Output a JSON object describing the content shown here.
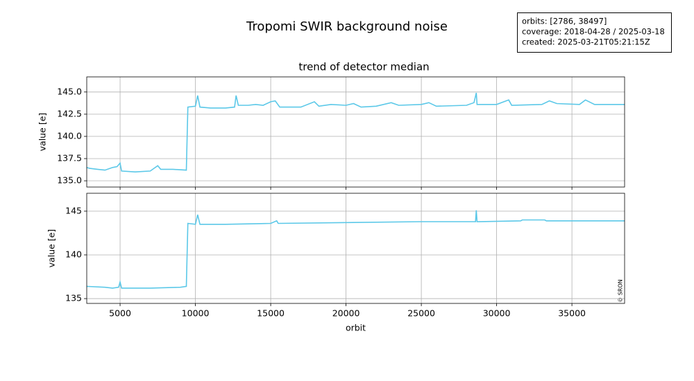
{
  "figure": {
    "title": "Tropomi SWIR background noise",
    "info": [
      "orbits: [2786, 38497]",
      "coverage: 2018-04-28 / 2025-03-18",
      "created: 2025-03-21T05:21:15Z"
    ],
    "credit": "© SRON"
  },
  "chart_data": [
    {
      "type": "line",
      "title": "trend of detector median",
      "ylabel": "value [e]",
      "color": "#5bc8e8",
      "grid": true,
      "xlim": [
        2786,
        38497
      ],
      "xticks": [
        5000,
        10000,
        15000,
        20000,
        25000,
        30000,
        35000
      ],
      "ylim": [
        134.3,
        146.7
      ],
      "yticks": [
        {
          "value": 135,
          "label": "135.0"
        },
        137.5,
        {
          "value": 140,
          "label": "140.0"
        },
        142.5,
        {
          "value": 145,
          "label": "145.0"
        }
      ],
      "x": [
        2786,
        3000,
        3500,
        4000,
        4500,
        4800,
        5000,
        5100,
        6000,
        7000,
        7500,
        7700,
        8500,
        9400,
        9500,
        10000,
        10150,
        10300,
        11000,
        12000,
        12600,
        12700,
        12850,
        13500,
        14000,
        14500,
        15000,
        15300,
        15600,
        17000,
        17900,
        18200,
        19000,
        20000,
        20500,
        21000,
        22000,
        23000,
        23500,
        25000,
        25500,
        26000,
        28000,
        28500,
        28650,
        28700,
        30000,
        30800,
        31000,
        33000,
        33500,
        34000,
        35500,
        35900,
        36500,
        38497
      ],
      "values": [
        136.5,
        136.4,
        136.3,
        136.2,
        136.5,
        136.6,
        137.0,
        136.1,
        136.0,
        136.1,
        136.7,
        136.3,
        136.3,
        136.2,
        143.3,
        143.4,
        144.6,
        143.3,
        143.2,
        143.2,
        143.3,
        144.6,
        143.5,
        143.5,
        143.6,
        143.5,
        143.9,
        144.0,
        143.3,
        143.3,
        143.9,
        143.4,
        143.6,
        143.5,
        143.7,
        143.3,
        143.4,
        143.8,
        143.5,
        143.6,
        143.8,
        143.4,
        143.5,
        143.8,
        144.9,
        143.6,
        143.6,
        144.1,
        143.5,
        143.6,
        144.0,
        143.7,
        143.6,
        144.1,
        143.6,
        143.6
      ]
    },
    {
      "type": "line",
      "xlabel": "orbit",
      "ylabel": "value [e]",
      "color": "#5bc8e8",
      "grid": true,
      "xlim": [
        2786,
        38497
      ],
      "xticks": [
        5000,
        10000,
        15000,
        20000,
        25000,
        30000,
        35000
      ],
      "ylim": [
        134.45,
        147.05
      ],
      "yticks": [
        135,
        140,
        145
      ],
      "x": [
        2786,
        4000,
        4500,
        4900,
        5000,
        5100,
        7000,
        9000,
        9400,
        9500,
        10000,
        10150,
        10300,
        12000,
        15000,
        15400,
        15500,
        20000,
        25000,
        28600,
        28650,
        28700,
        31600,
        31700,
        33200,
        33300,
        35000,
        38497
      ],
      "values": [
        136.4,
        136.3,
        136.2,
        136.3,
        136.9,
        136.2,
        136.2,
        136.3,
        136.4,
        143.6,
        143.5,
        144.6,
        143.5,
        143.5,
        143.6,
        143.9,
        143.6,
        143.7,
        143.8,
        143.8,
        145.1,
        143.8,
        143.9,
        144.0,
        144.0,
        143.9,
        143.9,
        143.9
      ]
    }
  ]
}
